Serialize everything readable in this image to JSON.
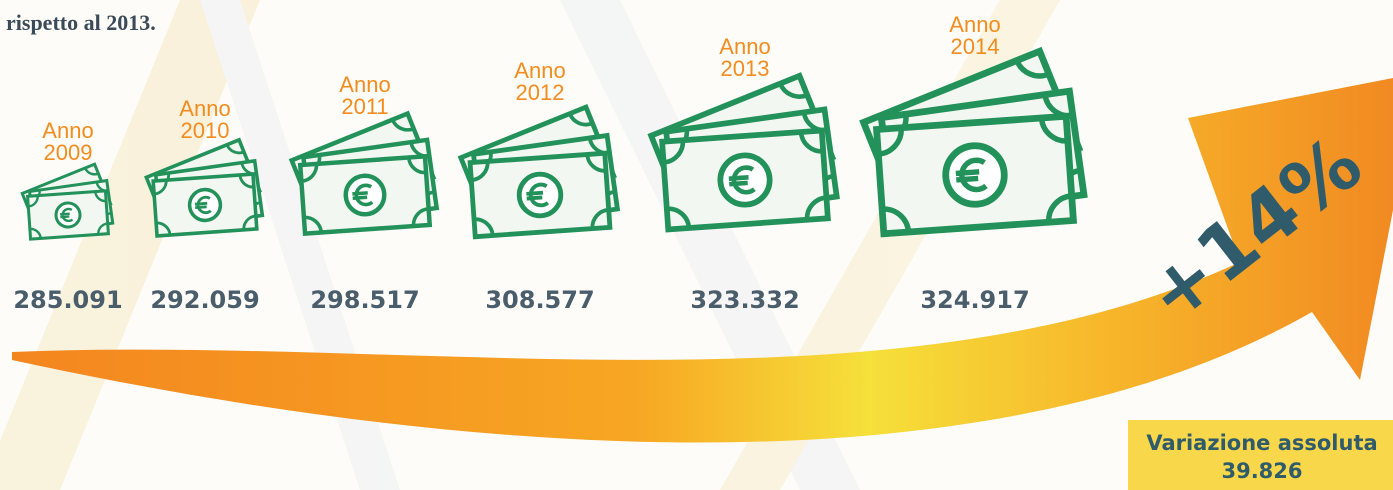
{
  "header": {
    "text": "rispetto al 2013."
  },
  "items": [
    {
      "anno": "Anno",
      "year": "2009",
      "value": "285.091"
    },
    {
      "anno": "Anno",
      "year": "2010",
      "value": "292.059"
    },
    {
      "anno": "Anno",
      "year": "2011",
      "value": "298.517"
    },
    {
      "anno": "Anno",
      "year": "2012",
      "value": "308.577"
    },
    {
      "anno": "Anno",
      "year": "2013",
      "value": "323.332"
    },
    {
      "anno": "Anno",
      "year": "2014",
      "value": "324.917"
    }
  ],
  "growth": "+14%",
  "variation": {
    "label": "Variazione assoluta",
    "value": "39.826"
  }
}
